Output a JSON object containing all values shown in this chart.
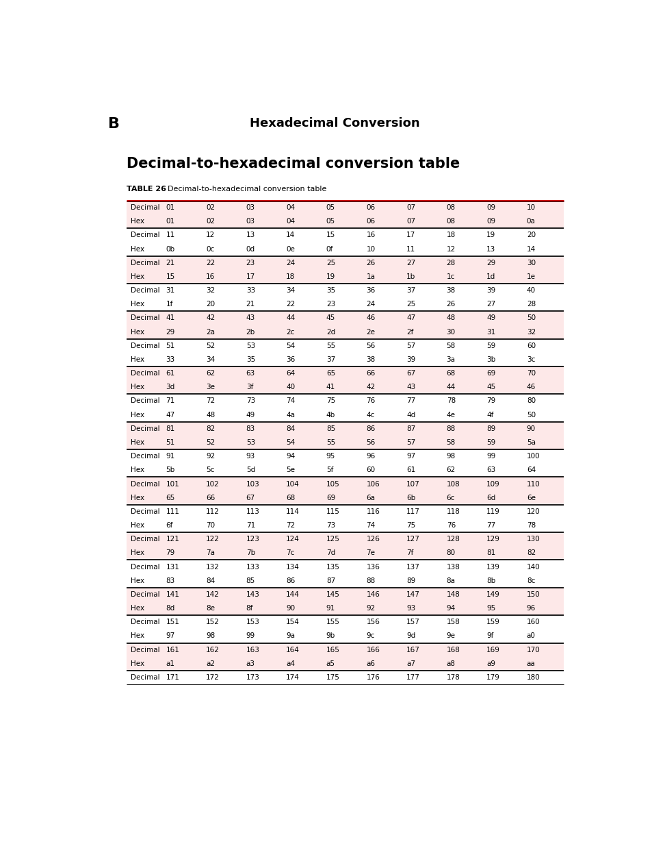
{
  "page_letter": "B",
  "header_title": "Hexadecimal Conversion",
  "section_title": "Decimal-to-hexadecimal conversion table",
  "table_label": "TABLE 26",
  "table_caption": "Decimal-to-hexadecimal conversion table",
  "rows": [
    {
      "type": "decimal",
      "label": "Decimal",
      "values": [
        "01",
        "02",
        "03",
        "04",
        "05",
        "06",
        "07",
        "08",
        "09",
        "10"
      ],
      "shaded": true
    },
    {
      "type": "hex",
      "label": "Hex",
      "values": [
        "01",
        "02",
        "03",
        "04",
        "05",
        "06",
        "07",
        "08",
        "09",
        "0a"
      ],
      "shaded": true
    },
    {
      "type": "decimal",
      "label": "Decimal",
      "values": [
        "11",
        "12",
        "13",
        "14",
        "15",
        "16",
        "17",
        "18",
        "19",
        "20"
      ],
      "shaded": false
    },
    {
      "type": "hex",
      "label": "Hex",
      "values": [
        "0b",
        "0c",
        "0d",
        "0e",
        "0f",
        "10",
        "11",
        "12",
        "13",
        "14"
      ],
      "shaded": false
    },
    {
      "type": "decimal",
      "label": "Decimal",
      "values": [
        "21",
        "22",
        "23",
        "24",
        "25",
        "26",
        "27",
        "28",
        "29",
        "30"
      ],
      "shaded": true
    },
    {
      "type": "hex",
      "label": "Hex",
      "values": [
        "15",
        "16",
        "17",
        "18",
        "19",
        "1a",
        "1b",
        "1c",
        "1d",
        "1e"
      ],
      "shaded": true
    },
    {
      "type": "decimal",
      "label": "Decimal",
      "values": [
        "31",
        "32",
        "33",
        "34",
        "35",
        "36",
        "37",
        "38",
        "39",
        "40"
      ],
      "shaded": false
    },
    {
      "type": "hex",
      "label": "Hex",
      "values": [
        "1f",
        "20",
        "21",
        "22",
        "23",
        "24",
        "25",
        "26",
        "27",
        "28"
      ],
      "shaded": false
    },
    {
      "type": "decimal",
      "label": "Decimal",
      "values": [
        "41",
        "42",
        "43",
        "44",
        "45",
        "46",
        "47",
        "48",
        "49",
        "50"
      ],
      "shaded": true
    },
    {
      "type": "hex",
      "label": "Hex",
      "values": [
        "29",
        "2a",
        "2b",
        "2c",
        "2d",
        "2e",
        "2f",
        "30",
        "31",
        "32"
      ],
      "shaded": true
    },
    {
      "type": "decimal",
      "label": "Decimal",
      "values": [
        "51",
        "52",
        "53",
        "54",
        "55",
        "56",
        "57",
        "58",
        "59",
        "60"
      ],
      "shaded": false
    },
    {
      "type": "hex",
      "label": "Hex",
      "values": [
        "33",
        "34",
        "35",
        "36",
        "37",
        "38",
        "39",
        "3a",
        "3b",
        "3c"
      ],
      "shaded": false
    },
    {
      "type": "decimal",
      "label": "Decimal",
      "values": [
        "61",
        "62",
        "63",
        "64",
        "65",
        "66",
        "67",
        "68",
        "69",
        "70"
      ],
      "shaded": true
    },
    {
      "type": "hex",
      "label": "Hex",
      "values": [
        "3d",
        "3e",
        "3f",
        "40",
        "41",
        "42",
        "43",
        "44",
        "45",
        "46"
      ],
      "shaded": true
    },
    {
      "type": "decimal",
      "label": "Decimal",
      "values": [
        "71",
        "72",
        "73",
        "74",
        "75",
        "76",
        "77",
        "78",
        "79",
        "80"
      ],
      "shaded": false
    },
    {
      "type": "hex",
      "label": "Hex",
      "values": [
        "47",
        "48",
        "49",
        "4a",
        "4b",
        "4c",
        "4d",
        "4e",
        "4f",
        "50"
      ],
      "shaded": false
    },
    {
      "type": "decimal",
      "label": "Decimal",
      "values": [
        "81",
        "82",
        "83",
        "84",
        "85",
        "86",
        "87",
        "88",
        "89",
        "90"
      ],
      "shaded": true
    },
    {
      "type": "hex",
      "label": "Hex",
      "values": [
        "51",
        "52",
        "53",
        "54",
        "55",
        "56",
        "57",
        "58",
        "59",
        "5a"
      ],
      "shaded": true
    },
    {
      "type": "decimal",
      "label": "Decimal",
      "values": [
        "91",
        "92",
        "93",
        "94",
        "95",
        "96",
        "97",
        "98",
        "99",
        "100"
      ],
      "shaded": false
    },
    {
      "type": "hex",
      "label": "Hex",
      "values": [
        "5b",
        "5c",
        "5d",
        "5e",
        "5f",
        "60",
        "61",
        "62",
        "63",
        "64"
      ],
      "shaded": false
    },
    {
      "type": "decimal",
      "label": "Decimal",
      "values": [
        "101",
        "102",
        "103",
        "104",
        "105",
        "106",
        "107",
        "108",
        "109",
        "110"
      ],
      "shaded": true
    },
    {
      "type": "hex",
      "label": "Hex",
      "values": [
        "65",
        "66",
        "67",
        "68",
        "69",
        "6a",
        "6b",
        "6c",
        "6d",
        "6e"
      ],
      "shaded": true
    },
    {
      "type": "decimal",
      "label": "Decimal",
      "values": [
        "111",
        "112",
        "113",
        "114",
        "115",
        "116",
        "117",
        "118",
        "119",
        "120"
      ],
      "shaded": false
    },
    {
      "type": "hex",
      "label": "Hex",
      "values": [
        "6f",
        "70",
        "71",
        "72",
        "73",
        "74",
        "75",
        "76",
        "77",
        "78"
      ],
      "shaded": false
    },
    {
      "type": "decimal",
      "label": "Decimal",
      "values": [
        "121",
        "122",
        "123",
        "124",
        "125",
        "126",
        "127",
        "128",
        "129",
        "130"
      ],
      "shaded": true
    },
    {
      "type": "hex",
      "label": "Hex",
      "values": [
        "79",
        "7a",
        "7b",
        "7c",
        "7d",
        "7e",
        "7f",
        "80",
        "81",
        "82"
      ],
      "shaded": true
    },
    {
      "type": "decimal",
      "label": "Decimal",
      "values": [
        "131",
        "132",
        "133",
        "134",
        "135",
        "136",
        "137",
        "138",
        "139",
        "140"
      ],
      "shaded": false
    },
    {
      "type": "hex",
      "label": "Hex",
      "values": [
        "83",
        "84",
        "85",
        "86",
        "87",
        "88",
        "89",
        "8a",
        "8b",
        "8c"
      ],
      "shaded": false
    },
    {
      "type": "decimal",
      "label": "Decimal",
      "values": [
        "141",
        "142",
        "143",
        "144",
        "145",
        "146",
        "147",
        "148",
        "149",
        "150"
      ],
      "shaded": true
    },
    {
      "type": "hex",
      "label": "Hex",
      "values": [
        "8d",
        "8e",
        "8f",
        "90",
        "91",
        "92",
        "93",
        "94",
        "95",
        "96"
      ],
      "shaded": true
    },
    {
      "type": "decimal",
      "label": "Decimal",
      "values": [
        "151",
        "152",
        "153",
        "154",
        "155",
        "156",
        "157",
        "158",
        "159",
        "160"
      ],
      "shaded": false
    },
    {
      "type": "hex",
      "label": "Hex",
      "values": [
        "97",
        "98",
        "99",
        "9a",
        "9b",
        "9c",
        "9d",
        "9e",
        "9f",
        "a0"
      ],
      "shaded": false
    },
    {
      "type": "decimal",
      "label": "Decimal",
      "values": [
        "161",
        "162",
        "163",
        "164",
        "165",
        "166",
        "167",
        "168",
        "169",
        "170"
      ],
      "shaded": true
    },
    {
      "type": "hex",
      "label": "Hex",
      "values": [
        "a1",
        "a2",
        "a3",
        "a4",
        "a5",
        "a6",
        "a7",
        "a8",
        "a9",
        "aa"
      ],
      "shaded": true
    },
    {
      "type": "decimal",
      "label": "Decimal",
      "values": [
        "171",
        "172",
        "173",
        "174",
        "175",
        "176",
        "177",
        "178",
        "179",
        "180"
      ],
      "shaded": false
    }
  ],
  "shaded_color": "#fde8e8",
  "white_color": "#ffffff",
  "header_red_line_color": "#cc0000",
  "header_black_line_color": "#1a1a1a",
  "group_separator_color": "#1a1a1a",
  "text_color": "#000000",
  "page_letter_fontsize": 16,
  "header_title_fontsize": 13,
  "section_title_fontsize": 15,
  "table_label_fontsize": 8,
  "row_label_fontsize": 7.5,
  "cell_fontsize": 7.5
}
